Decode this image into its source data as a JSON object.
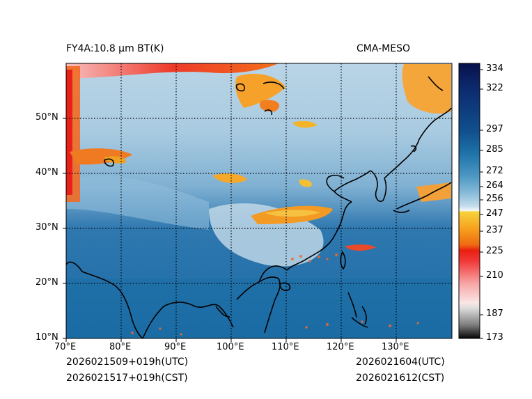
{
  "header": {
    "title_left": "FY4A:10.8 µm BT(K)",
    "title_right": "CMA-MESO"
  },
  "footer": {
    "init_utc": "2026021509+019h(UTC)",
    "init_cst": "2026021517+019h(CST)",
    "valid_utc": "2026021604(UTC)",
    "valid_cst": "2026021612(CST)"
  },
  "map": {
    "lon_labels": [
      "70°E",
      "80°E",
      "90°E",
      "100°E",
      "110°E",
      "120°E",
      "130°E"
    ],
    "lat_labels": [
      "10°N",
      "20°N",
      "30°N",
      "40°N",
      "50°N"
    ],
    "lon_range": [
      70,
      140
    ],
    "lat_range": [
      10,
      60
    ]
  },
  "colorbar": {
    "ticks": [
      "334",
      "322",
      "297",
      "285",
      "272",
      "264",
      "256",
      "247",
      "237",
      "225",
      "210",
      "187",
      "173"
    ],
    "range": [
      173,
      336
    ]
  }
}
